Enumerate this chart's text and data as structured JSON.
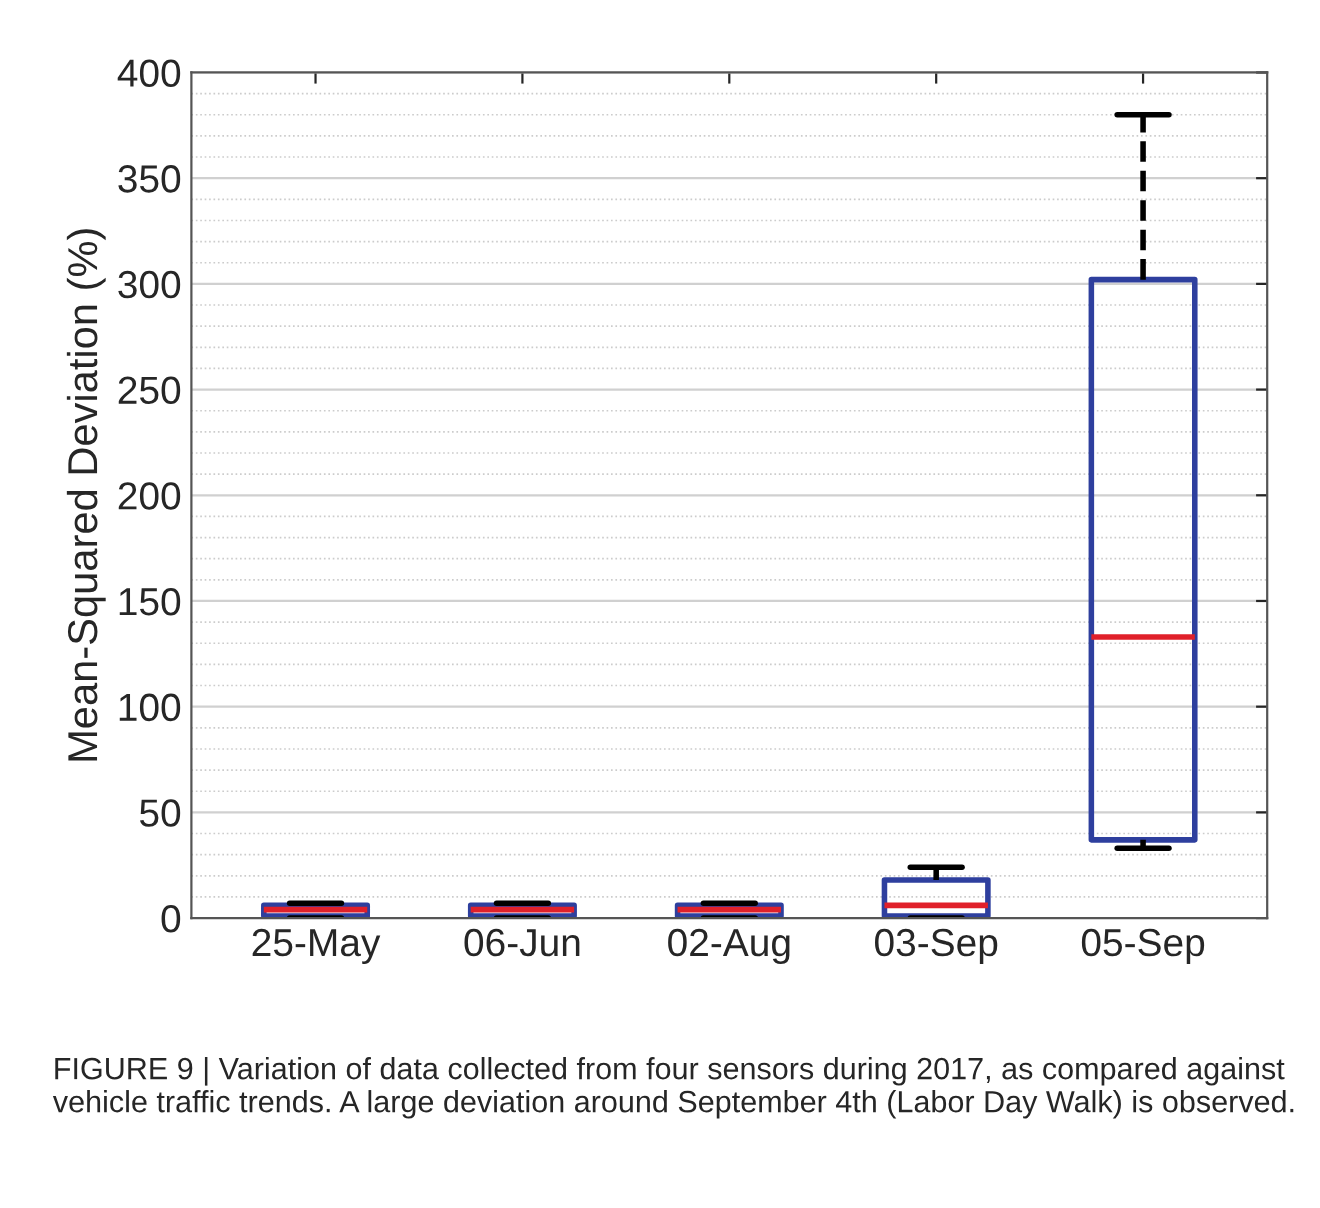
{
  "chart_data": {
    "type": "box",
    "ylabel": "Mean-Squared Deviation (%)",
    "categories": [
      "25-May",
      "06-Jun",
      "02-Aug",
      "03-Sep",
      "05-Sep"
    ],
    "boxes": [
      {
        "low": 0,
        "q1": 1,
        "median": 4,
        "q3": 6,
        "high": 7
      },
      {
        "low": 0,
        "q1": 1,
        "median": 4,
        "q3": 6,
        "high": 7
      },
      {
        "low": 0,
        "q1": 1,
        "median": 4,
        "q3": 6,
        "high": 7
      },
      {
        "low": 0,
        "q1": 1,
        "median": 6,
        "q3": 18,
        "high": 24
      },
      {
        "low": 33,
        "q1": 37,
        "median": 133,
        "q3": 302,
        "high": 380
      }
    ],
    "color": "#2e3f9e",
    "line_style": "dashed",
    "ylim": [
      0,
      400
    ],
    "yticks": [
      0,
      50,
      100,
      150,
      200,
      250,
      300,
      350,
      400
    ],
    "grid": true,
    "annotations": [
      "FIGURE 9 | Variation of data collected from four sensors during 2017, as compared against vehicle traffic trends. A large deviation around September 4th (Labor Day Walk) is observed."
    ]
  }
}
